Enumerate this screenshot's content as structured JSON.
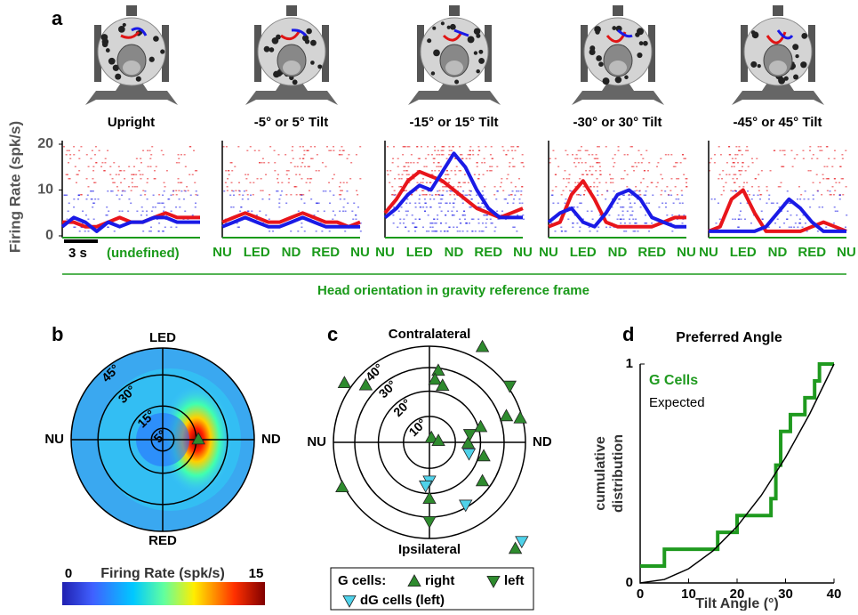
{
  "panel_labels": [
    "a",
    "b",
    "c",
    "d"
  ],
  "panel_a": {
    "y_label": "Firing Rate (spk/s)",
    "ylim": [
      0,
      20
    ],
    "yticks": [
      0,
      10,
      20
    ],
    "scale_bar": "3 s",
    "undefined_label": "(undefined)",
    "x_tick_labels": [
      "NU",
      "LED",
      "ND",
      "RED",
      "NU"
    ],
    "x_axis_title": "Head orientation in gravity reference frame",
    "series_colors": [
      "#e8151b",
      "#1a1ae6"
    ],
    "panels": [
      {
        "title": "Upright",
        "red": [
          3,
          3,
          2,
          2,
          3,
          4,
          3,
          3,
          4,
          5,
          4,
          4,
          4
        ],
        "blue": [
          2,
          4,
          3,
          1,
          3,
          2,
          3,
          3,
          4,
          4,
          3,
          3,
          3
        ]
      },
      {
        "title": "-5° or 5° Tilt",
        "red": [
          3,
          4,
          5,
          4,
          3,
          3,
          4,
          5,
          4,
          3,
          3,
          2,
          3
        ],
        "blue": [
          2,
          3,
          4,
          3,
          2,
          2,
          3,
          4,
          3,
          2,
          2,
          2,
          2
        ]
      },
      {
        "title": "-15° or 15° Tilt",
        "red": [
          5,
          8,
          12,
          14,
          13,
          12,
          10,
          8,
          6,
          5,
          4,
          5,
          6
        ],
        "blue": [
          4,
          6,
          9,
          11,
          10,
          14,
          18,
          15,
          10,
          6,
          4,
          4,
          4
        ]
      },
      {
        "title": "-30° or 30° Tilt",
        "red": [
          2,
          3,
          9,
          12,
          8,
          3,
          2,
          2,
          2,
          2,
          3,
          4,
          4
        ],
        "blue": [
          3,
          5,
          6,
          3,
          2,
          5,
          9,
          10,
          8,
          4,
          3,
          2,
          2
        ]
      },
      {
        "title": "-45° or 45° Tilt",
        "red": [
          1,
          2,
          8,
          10,
          5,
          1,
          1,
          1,
          1,
          2,
          3,
          2,
          1
        ],
        "blue": [
          1,
          1,
          1,
          1,
          1,
          2,
          5,
          8,
          6,
          3,
          1,
          1,
          1
        ]
      }
    ]
  },
  "panel_b": {
    "directions": {
      "top": "LED",
      "left": "NU",
      "right": "ND",
      "bottom": "RED"
    },
    "rings": [
      {
        "value": 5,
        "label": "5°"
      },
      {
        "value": 15,
        "label": "15°"
      },
      {
        "value": 30,
        "label": "30°"
      },
      {
        "value": 45,
        "label": "45°"
      }
    ],
    "colorbar_label": "Firing Rate (spk/s)",
    "colorbar_lim": [
      0,
      15
    ],
    "peak": {
      "azimuth": 1,
      "tilt": 16
    }
  },
  "panel_c": {
    "directions": {
      "top": "Contralateral",
      "left": "NU",
      "right": "ND",
      "bottom": "Ipsilateral"
    },
    "rings": [
      {
        "value": 10,
        "label": "10°"
      },
      {
        "value": 20,
        "label": "20°"
      },
      {
        "value": 30,
        "label": "30°"
      },
      {
        "value": 40,
        "label": "40°"
      }
    ],
    "legend_title": "G cells:",
    "groups": [
      {
        "name": "right",
        "color": "#2e8b2e",
        "marker": "up",
        "azimuth": [
          61,
          138,
          145,
          83,
          85,
          77,
          68,
          11,
          17,
          19,
          15,
          -1,
          -14,
          -36,
          -51,
          -153,
          -90
        ],
        "tilt": [
          47,
          35,
          44,
          29,
          25,
          23,
          2,
          3.5,
          21,
          33,
          39,
          15,
          22,
          26,
          66,
          41,
          22
        ]
      },
      {
        "name": "left",
        "color": "#2e8b2e",
        "marker": "down",
        "azimuth": [
          -90,
          35,
          11
        ],
        "tilt": [
          32,
          41,
          16
        ]
      },
      {
        "name": "dG cells (left)",
        "color": "#4fd2ea",
        "marker": "down",
        "azimuth": [
          -90,
          -95,
          -16,
          -60,
          -47
        ],
        "tilt": [
          15,
          17,
          16,
          29,
          65
        ]
      }
    ]
  },
  "panel_d": {
    "title": "Preferred Angle",
    "x_label": "Tilt Angle (°)",
    "y_label": [
      "cumulative",
      "distribution"
    ],
    "xlim": [
      0,
      40
    ],
    "xticks": [
      0,
      10,
      20,
      30,
      40
    ],
    "ylim": [
      0,
      1
    ],
    "yticks": [
      0,
      1
    ],
    "series": [
      {
        "name": "G Cells",
        "color": "#1f9a1f",
        "step": true,
        "x": [
          0,
          5,
          16,
          20,
          27,
          28,
          29,
          31,
          34,
          36,
          37
        ],
        "values": [
          0.077,
          0.154,
          0.231,
          0.308,
          0.385,
          0.538,
          0.692,
          0.769,
          0.846,
          0.923,
          1
        ]
      },
      {
        "name": "Expected",
        "color": "#000000",
        "step": false,
        "x": [
          0,
          5,
          10,
          15,
          20,
          25,
          30,
          35,
          40
        ],
        "values": [
          0,
          0.016,
          0.065,
          0.146,
          0.258,
          0.4,
          0.573,
          0.773,
          1
        ]
      }
    ]
  }
}
